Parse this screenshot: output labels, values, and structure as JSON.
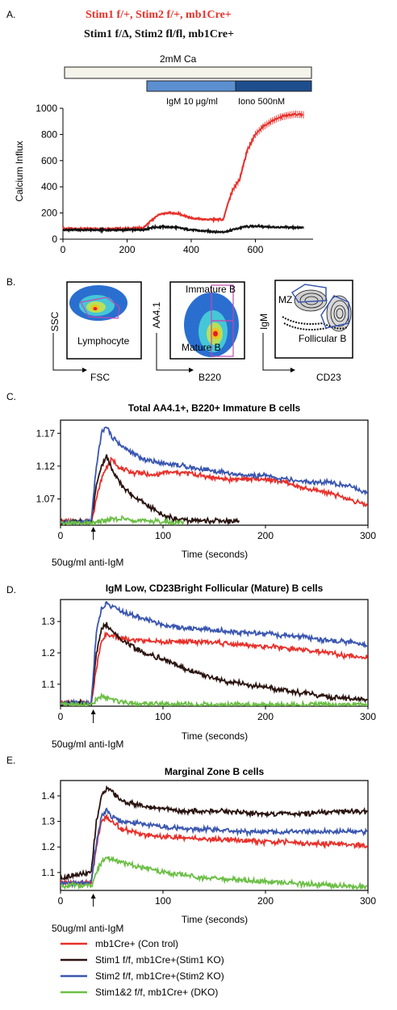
{
  "panels": {
    "A": "A.",
    "B": "B.",
    "C": "C.",
    "D": "D.",
    "E": "E."
  },
  "panel_a": {
    "genotype_control": "Stim1 f/+, Stim2 f/+, mb1Cre+",
    "genotype_ko": "Stim1 f/Δ, Stim2 fl/fl, mb1Cre+",
    "bar_ca": "2mM Ca",
    "bar_igm": "IgM 10 μg/ml",
    "bar_iono": "Iono 500nM",
    "ylabel": "Calcium Influx",
    "colors": {
      "control": "#e8302a",
      "ko": "#111111",
      "ca_fill": "#f4f4ea",
      "igm_fill": "#5b8fd0",
      "iono_fill": "#1e4e8e"
    }
  },
  "panel_b": {
    "plot1": {
      "gate": "Lymphocyte",
      "xlabel": "FSC",
      "ylabel": "SSC"
    },
    "plot2": {
      "gate_top": "Immature B",
      "gate_bottom": "Mature B",
      "xlabel": "B220",
      "ylabel": "AA4.1"
    },
    "plot3": {
      "gate_top": "MZ",
      "gate_bottom": "Follicular B",
      "xlabel": "CD23",
      "ylabel": "IgM"
    }
  },
  "annotation": "50ug/ml anti-IgM",
  "legend": {
    "items": [
      {
        "label": "mb1Cre+ (Con trol)",
        "color": "#e8302a"
      },
      {
        "label": "Stim1 f/f, mb1Cre+(Stim1 KO)",
        "color": "#2a1410"
      },
      {
        "label": "Stim2 f/f, mb1Cre+(Stim2 KO)",
        "color": "#3a56b0"
      },
      {
        "label": "Stim1&2 f/f, mb1Cre+ (DKO)",
        "color": "#6bbf45"
      }
    ]
  },
  "chart_data": [
    {
      "type": "line",
      "title": "",
      "xlabel": "",
      "ylabel": "Calcium Influx",
      "xlim": [
        0,
        780
      ],
      "ylim": [
        0,
        1000
      ],
      "xticks": [
        0,
        200,
        400,
        600
      ],
      "yticks": [
        0,
        200,
        400,
        600,
        800,
        1000
      ],
      "series": [
        {
          "name": "Stim1 f/+, Stim2 f/+, mb1Cre+",
          "color": "#e8302a",
          "x": [
            0,
            100,
            200,
            250,
            275,
            300,
            330,
            360,
            400,
            450,
            500,
            515,
            530,
            550,
            575,
            600,
            625,
            650,
            675,
            700,
            725,
            750
          ],
          "y": [
            80,
            80,
            80,
            85,
            140,
            190,
            200,
            195,
            160,
            150,
            150,
            280,
            380,
            450,
            680,
            800,
            860,
            900,
            930,
            945,
            955,
            950
          ]
        },
        {
          "name": "Stim1 f/Δ, Stim2 fl/fl, mb1Cre+",
          "color": "#111111",
          "x": [
            0,
            100,
            200,
            250,
            280,
            320,
            360,
            400,
            450,
            500,
            515,
            540,
            570,
            600,
            650,
            700,
            750
          ],
          "y": [
            70,
            70,
            70,
            72,
            90,
            95,
            88,
            70,
            60,
            55,
            60,
            80,
            95,
            100,
            92,
            90,
            88
          ]
        }
      ]
    },
    {
      "type": "line",
      "title": "Total AA4.1+, B220+ Immature B cells",
      "xlabel": "Time (seconds)",
      "ylabel": "",
      "xlim": [
        0,
        300
      ],
      "ylim": [
        1.03,
        1.19
      ],
      "xticks": [
        0,
        100,
        200,
        300
      ],
      "yticks": [
        1.07,
        1.12,
        1.17
      ],
      "series": [
        {
          "name": "mb1Cre+ (Con trol)",
          "color": "#e8302a",
          "x": [
            0,
            30,
            35,
            40,
            45,
            50,
            60,
            70,
            80,
            90,
            100,
            120,
            140,
            160,
            180,
            200,
            220,
            240,
            260,
            280,
            300
          ],
          "y": [
            1.035,
            1.035,
            1.07,
            1.1,
            1.12,
            1.13,
            1.115,
            1.11,
            1.11,
            1.105,
            1.11,
            1.11,
            1.105,
            1.1,
            1.1,
            1.1,
            1.095,
            1.085,
            1.08,
            1.07,
            1.06
          ]
        },
        {
          "name": "Stim1 f/f, mb1Cre+(Stim1 KO)",
          "color": "#2a1410",
          "x": [
            0,
            30,
            35,
            40,
            45,
            50,
            55,
            60,
            70,
            80,
            90,
            100,
            110,
            120,
            140,
            160,
            175
          ],
          "y": [
            1.035,
            1.035,
            1.09,
            1.12,
            1.135,
            1.115,
            1.105,
            1.09,
            1.075,
            1.065,
            1.055,
            1.045,
            1.04,
            1.038,
            1.037,
            1.036,
            1.036
          ]
        },
        {
          "name": "Stim2 f/f, mb1Cre+(Stim2 KO)",
          "color": "#3a56b0",
          "x": [
            0,
            30,
            35,
            40,
            45,
            50,
            60,
            70,
            80,
            100,
            120,
            140,
            160,
            180,
            200,
            220,
            240,
            260,
            280,
            300
          ],
          "y": [
            1.035,
            1.035,
            1.12,
            1.17,
            1.18,
            1.165,
            1.15,
            1.14,
            1.13,
            1.125,
            1.12,
            1.115,
            1.11,
            1.105,
            1.105,
            1.1,
            1.095,
            1.095,
            1.09,
            1.08
          ]
        },
        {
          "name": "Stim1&2 f/f, mb1Cre+ (DKO)",
          "color": "#6bbf45",
          "x": [
            0,
            30,
            40,
            50,
            60,
            70,
            80,
            90,
            100,
            110,
            120
          ],
          "y": [
            1.033,
            1.033,
            1.036,
            1.038,
            1.04,
            1.038,
            1.037,
            1.036,
            1.035,
            1.034,
            1.034
          ]
        }
      ]
    },
    {
      "type": "line",
      "title": "IgM Low, CD23Bright Follicular (Mature) B cells",
      "xlabel": "Time (seconds)",
      "ylabel": "",
      "xlim": [
        0,
        300
      ],
      "ylim": [
        1.03,
        1.37
      ],
      "xticks": [
        0,
        100,
        200,
        300
      ],
      "yticks": [
        1.1,
        1.2,
        1.3
      ],
      "series": [
        {
          "name": "mb1Cre+ (Con trol)",
          "color": "#e8302a",
          "x": [
            0,
            30,
            35,
            40,
            45,
            50,
            60,
            80,
            100,
            120,
            140,
            160,
            180,
            200,
            220,
            240,
            260,
            280,
            300
          ],
          "y": [
            1.04,
            1.04,
            1.15,
            1.24,
            1.26,
            1.255,
            1.245,
            1.24,
            1.235,
            1.235,
            1.235,
            1.23,
            1.225,
            1.22,
            1.215,
            1.21,
            1.2,
            1.19,
            1.185
          ]
        },
        {
          "name": "Stim1 f/f, mb1Cre+(Stim1 KO)",
          "color": "#2a1410",
          "x": [
            0,
            30,
            35,
            40,
            45,
            50,
            60,
            70,
            80,
            100,
            120,
            140,
            160,
            180,
            200,
            220,
            240,
            260,
            280,
            300
          ],
          "y": [
            1.04,
            1.04,
            1.2,
            1.28,
            1.29,
            1.27,
            1.24,
            1.22,
            1.2,
            1.18,
            1.15,
            1.13,
            1.11,
            1.1,
            1.09,
            1.08,
            1.07,
            1.06,
            1.055,
            1.05
          ]
        },
        {
          "name": "Stim2 f/f, mb1Cre+(Stim2 KO)",
          "color": "#3a56b0",
          "x": [
            0,
            30,
            35,
            40,
            45,
            50,
            60,
            80,
            100,
            120,
            140,
            160,
            180,
            200,
            220,
            240,
            260,
            280,
            300
          ],
          "y": [
            1.04,
            1.04,
            1.27,
            1.34,
            1.355,
            1.35,
            1.33,
            1.31,
            1.29,
            1.28,
            1.275,
            1.27,
            1.265,
            1.26,
            1.255,
            1.25,
            1.24,
            1.235,
            1.225
          ]
        },
        {
          "name": "Stim1&2 f/f, mb1Cre+ (DKO)",
          "color": "#6bbf45",
          "x": [
            0,
            30,
            35,
            40,
            45,
            50,
            60,
            70,
            80,
            100,
            150,
            200,
            250,
            300
          ],
          "y": [
            1.035,
            1.035,
            1.05,
            1.06,
            1.055,
            1.05,
            1.045,
            1.04,
            1.038,
            1.036,
            1.035,
            1.035,
            1.035,
            1.035
          ]
        }
      ]
    },
    {
      "type": "line",
      "title": "Marginal Zone B cells",
      "xlabel": "Time (seconds)",
      "ylabel": "",
      "xlim": [
        0,
        300
      ],
      "ylim": [
        1.03,
        1.46
      ],
      "xticks": [
        0,
        100,
        200,
        300
      ],
      "yticks": [
        1.1,
        1.2,
        1.3,
        1.4
      ],
      "series": [
        {
          "name": "mb1Cre+ (Con trol)",
          "color": "#e8302a",
          "x": [
            0,
            30,
            35,
            40,
            45,
            50,
            60,
            80,
            100,
            120,
            140,
            160,
            180,
            200,
            220,
            240,
            260,
            280,
            300
          ],
          "y": [
            1.06,
            1.06,
            1.2,
            1.3,
            1.32,
            1.3,
            1.27,
            1.25,
            1.24,
            1.235,
            1.23,
            1.23,
            1.225,
            1.22,
            1.22,
            1.215,
            1.21,
            1.21,
            1.205
          ]
        },
        {
          "name": "Stim1 f/f, mb1Cre+(Stim1 KO)",
          "color": "#2a1410",
          "x": [
            0,
            30,
            35,
            40,
            45,
            50,
            60,
            80,
            100,
            120,
            140,
            160,
            180,
            200,
            220,
            240,
            260,
            280,
            300
          ],
          "y": [
            1.08,
            1.1,
            1.3,
            1.4,
            1.43,
            1.42,
            1.38,
            1.36,
            1.35,
            1.34,
            1.34,
            1.34,
            1.335,
            1.33,
            1.33,
            1.33,
            1.335,
            1.34,
            1.34
          ]
        },
        {
          "name": "Stim2 f/f, mb1Cre+(Stim2 KO)",
          "color": "#3a56b0",
          "x": [
            0,
            30,
            35,
            40,
            45,
            50,
            60,
            80,
            100,
            120,
            140,
            160,
            180,
            200,
            220,
            240,
            260,
            280,
            300
          ],
          "y": [
            1.06,
            1.06,
            1.22,
            1.32,
            1.34,
            1.32,
            1.3,
            1.29,
            1.28,
            1.27,
            1.27,
            1.265,
            1.26,
            1.26,
            1.26,
            1.26,
            1.26,
            1.26,
            1.26
          ]
        },
        {
          "name": "Stim1&2 f/f, mb1Cre+ (DKO)",
          "color": "#6bbf45",
          "x": [
            0,
            30,
            35,
            40,
            45,
            50,
            60,
            70,
            80,
            100,
            120,
            140,
            160,
            180,
            200,
            220,
            240,
            260,
            280,
            300
          ],
          "y": [
            1.05,
            1.05,
            1.1,
            1.14,
            1.16,
            1.15,
            1.14,
            1.13,
            1.12,
            1.1,
            1.09,
            1.08,
            1.075,
            1.07,
            1.065,
            1.06,
            1.055,
            1.05,
            1.045,
            1.045
          ]
        }
      ]
    }
  ]
}
